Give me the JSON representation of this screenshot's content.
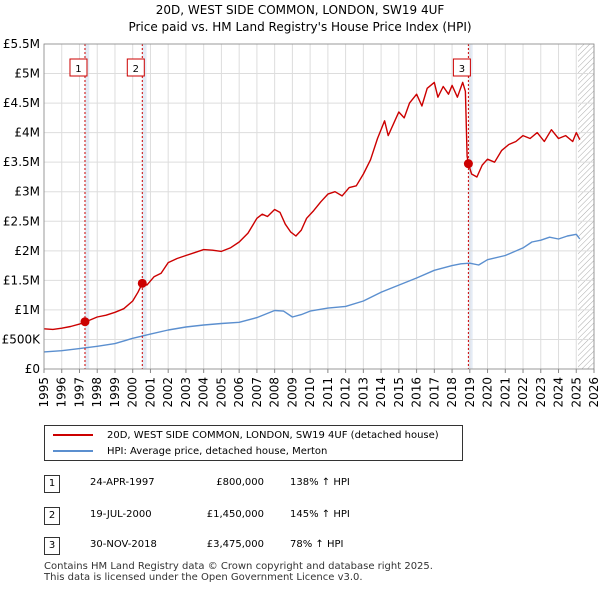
{
  "chart_data": {
    "type": "line",
    "title": "20D, WEST SIDE COMMON, LONDON, SW19 4UF",
    "subtitle": "Price paid vs. HM Land Registry's House Price Index (HPI)",
    "xlim": [
      1995,
      2026
    ],
    "ylim": [
      0,
      5500000
    ],
    "x_ticks": [
      "1995",
      "1996",
      "1997",
      "1998",
      "1999",
      "2000",
      "2001",
      "2002",
      "2003",
      "2004",
      "2005",
      "2006",
      "2007",
      "2008",
      "2009",
      "2010",
      "2011",
      "2012",
      "2013",
      "2014",
      "2015",
      "2016",
      "2017",
      "2018",
      "2019",
      "2020",
      "2021",
      "2022",
      "2023",
      "2024",
      "2025",
      "2026"
    ],
    "y_ticks": [
      {
        "value": 0,
        "label": "£0"
      },
      {
        "value": 500000,
        "label": "£500K"
      },
      {
        "value": 1000000,
        "label": "£1M"
      },
      {
        "value": 1500000,
        "label": "£1.5M"
      },
      {
        "value": 2000000,
        "label": "£2M"
      },
      {
        "value": 2500000,
        "label": "£2.5M"
      },
      {
        "value": 3000000,
        "label": "£3M"
      },
      {
        "value": 3500000,
        "label": "£3.5M"
      },
      {
        "value": 4000000,
        "label": "£4M"
      },
      {
        "value": 4500000,
        "label": "£4.5M"
      },
      {
        "value": 5000000,
        "label": "£5M"
      },
      {
        "value": 5500000,
        "label": "£5.5M"
      }
    ],
    "grid": true,
    "shaded_regions": [
      {
        "from": 1997.31,
        "to": 1997.55
      },
      {
        "from": 2000.54,
        "to": 2000.78
      },
      {
        "from": 2018.92,
        "to": 2019.16
      },
      {
        "from": 2025.1,
        "to": 2026,
        "hatched": true
      }
    ],
    "series": [
      {
        "name": "20D, WEST SIDE COMMON, LONDON, SW19 4UF (detached house)",
        "color": "#cc0000",
        "x": [
          1995.0,
          1995.5,
          1996.0,
          1996.5,
          1997.0,
          1997.31,
          1997.6,
          1998.0,
          1998.5,
          1999.0,
          1999.5,
          2000.0,
          2000.3,
          2000.54,
          2000.8,
          2001.2,
          2001.6,
          2002.0,
          2002.5,
          2003.0,
          2003.5,
          2004.0,
          2004.5,
          2005.0,
          2005.5,
          2006.0,
          2006.5,
          2007.0,
          2007.3,
          2007.6,
          2008.0,
          2008.3,
          2008.6,
          2008.9,
          2009.2,
          2009.5,
          2009.8,
          2010.2,
          2010.6,
          2011.0,
          2011.4,
          2011.8,
          2012.2,
          2012.6,
          2013.0,
          2013.4,
          2013.8,
          2014.2,
          2014.4,
          2014.7,
          2015.0,
          2015.3,
          2015.6,
          2016.0,
          2016.3,
          2016.6,
          2017.0,
          2017.2,
          2017.5,
          2017.8,
          2018.0,
          2018.3,
          2018.6,
          2018.75,
          2018.85,
          2018.92,
          2019.1,
          2019.4,
          2019.7,
          2020.0,
          2020.4,
          2020.8,
          2021.2,
          2021.6,
          2022.0,
          2022.4,
          2022.8,
          2023.2,
          2023.6,
          2024.0,
          2024.4,
          2024.8,
          2025.0,
          2025.2
        ],
        "values": [
          680000,
          670000,
          690000,
          720000,
          760000,
          800000,
          830000,
          880000,
          910000,
          960000,
          1020000,
          1150000,
          1300000,
          1450000,
          1420000,
          1560000,
          1620000,
          1800000,
          1870000,
          1920000,
          1970000,
          2020000,
          2010000,
          1990000,
          2050000,
          2150000,
          2300000,
          2550000,
          2620000,
          2580000,
          2700000,
          2650000,
          2450000,
          2320000,
          2250000,
          2350000,
          2550000,
          2680000,
          2830000,
          2960000,
          3000000,
          2930000,
          3070000,
          3100000,
          3300000,
          3540000,
          3900000,
          4200000,
          3950000,
          4150000,
          4350000,
          4250000,
          4500000,
          4650000,
          4450000,
          4750000,
          4850000,
          4600000,
          4780000,
          4650000,
          4800000,
          4600000,
          4850000,
          4700000,
          3600000,
          3475000,
          3300000,
          3250000,
          3450000,
          3550000,
          3500000,
          3700000,
          3800000,
          3850000,
          3950000,
          3900000,
          4000000,
          3850000,
          4050000,
          3900000,
          3950000,
          3850000,
          4000000,
          3880000
        ]
      },
      {
        "name": "HPI: Average price, detached house, Merton",
        "color": "#5b8fcf",
        "x": [
          1995.0,
          1996.0,
          1997.0,
          1998.0,
          1999.0,
          2000.0,
          2001.0,
          2002.0,
          2003.0,
          2004.0,
          2005.0,
          2006.0,
          2007.0,
          2008.0,
          2008.5,
          2009.0,
          2009.5,
          2010.0,
          2011.0,
          2012.0,
          2013.0,
          2014.0,
          2015.0,
          2016.0,
          2017.0,
          2018.0,
          2018.5,
          2019.0,
          2019.5,
          2020.0,
          2021.0,
          2022.0,
          2022.5,
          2023.0,
          2023.5,
          2024.0,
          2024.5,
          2025.0,
          2025.2
        ],
        "values": [
          290000,
          310000,
          345000,
          385000,
          430000,
          520000,
          590000,
          660000,
          710000,
          745000,
          770000,
          790000,
          870000,
          990000,
          980000,
          880000,
          920000,
          980000,
          1030000,
          1060000,
          1150000,
          1300000,
          1420000,
          1540000,
          1670000,
          1750000,
          1780000,
          1790000,
          1760000,
          1850000,
          1920000,
          2050000,
          2150000,
          2180000,
          2230000,
          2200000,
          2250000,
          2280000,
          2200000
        ]
      }
    ],
    "annotations": [
      {
        "label": "1",
        "x": 1997.31,
        "y": 800000
      },
      {
        "label": "2",
        "x": 2000.54,
        "y": 1450000
      },
      {
        "label": "3",
        "x": 2018.92,
        "y": 3475000
      }
    ]
  },
  "legend": {
    "property_label": "20D, WEST SIDE COMMON, LONDON, SW19 4UF (detached house)",
    "hpi_label": "HPI: Average price, detached house, Merton",
    "property_color": "#cc0000",
    "hpi_color": "#5b8fcf"
  },
  "transactions": [
    {
      "num": "1",
      "date": "24-APR-1997",
      "price": "£800,000",
      "hpi": "138% ↑ HPI"
    },
    {
      "num": "2",
      "date": "19-JUL-2000",
      "price": "£1,450,000",
      "hpi": "145% ↑ HPI"
    },
    {
      "num": "3",
      "date": "30-NOV-2018",
      "price": "£3,475,000",
      "hpi": "78% ↑ HPI"
    }
  ],
  "footer": {
    "line1": "Contains HM Land Registry data © Crown copyright and database right 2025.",
    "line2": "This data is licensed under the Open Government Licence v3.0."
  }
}
